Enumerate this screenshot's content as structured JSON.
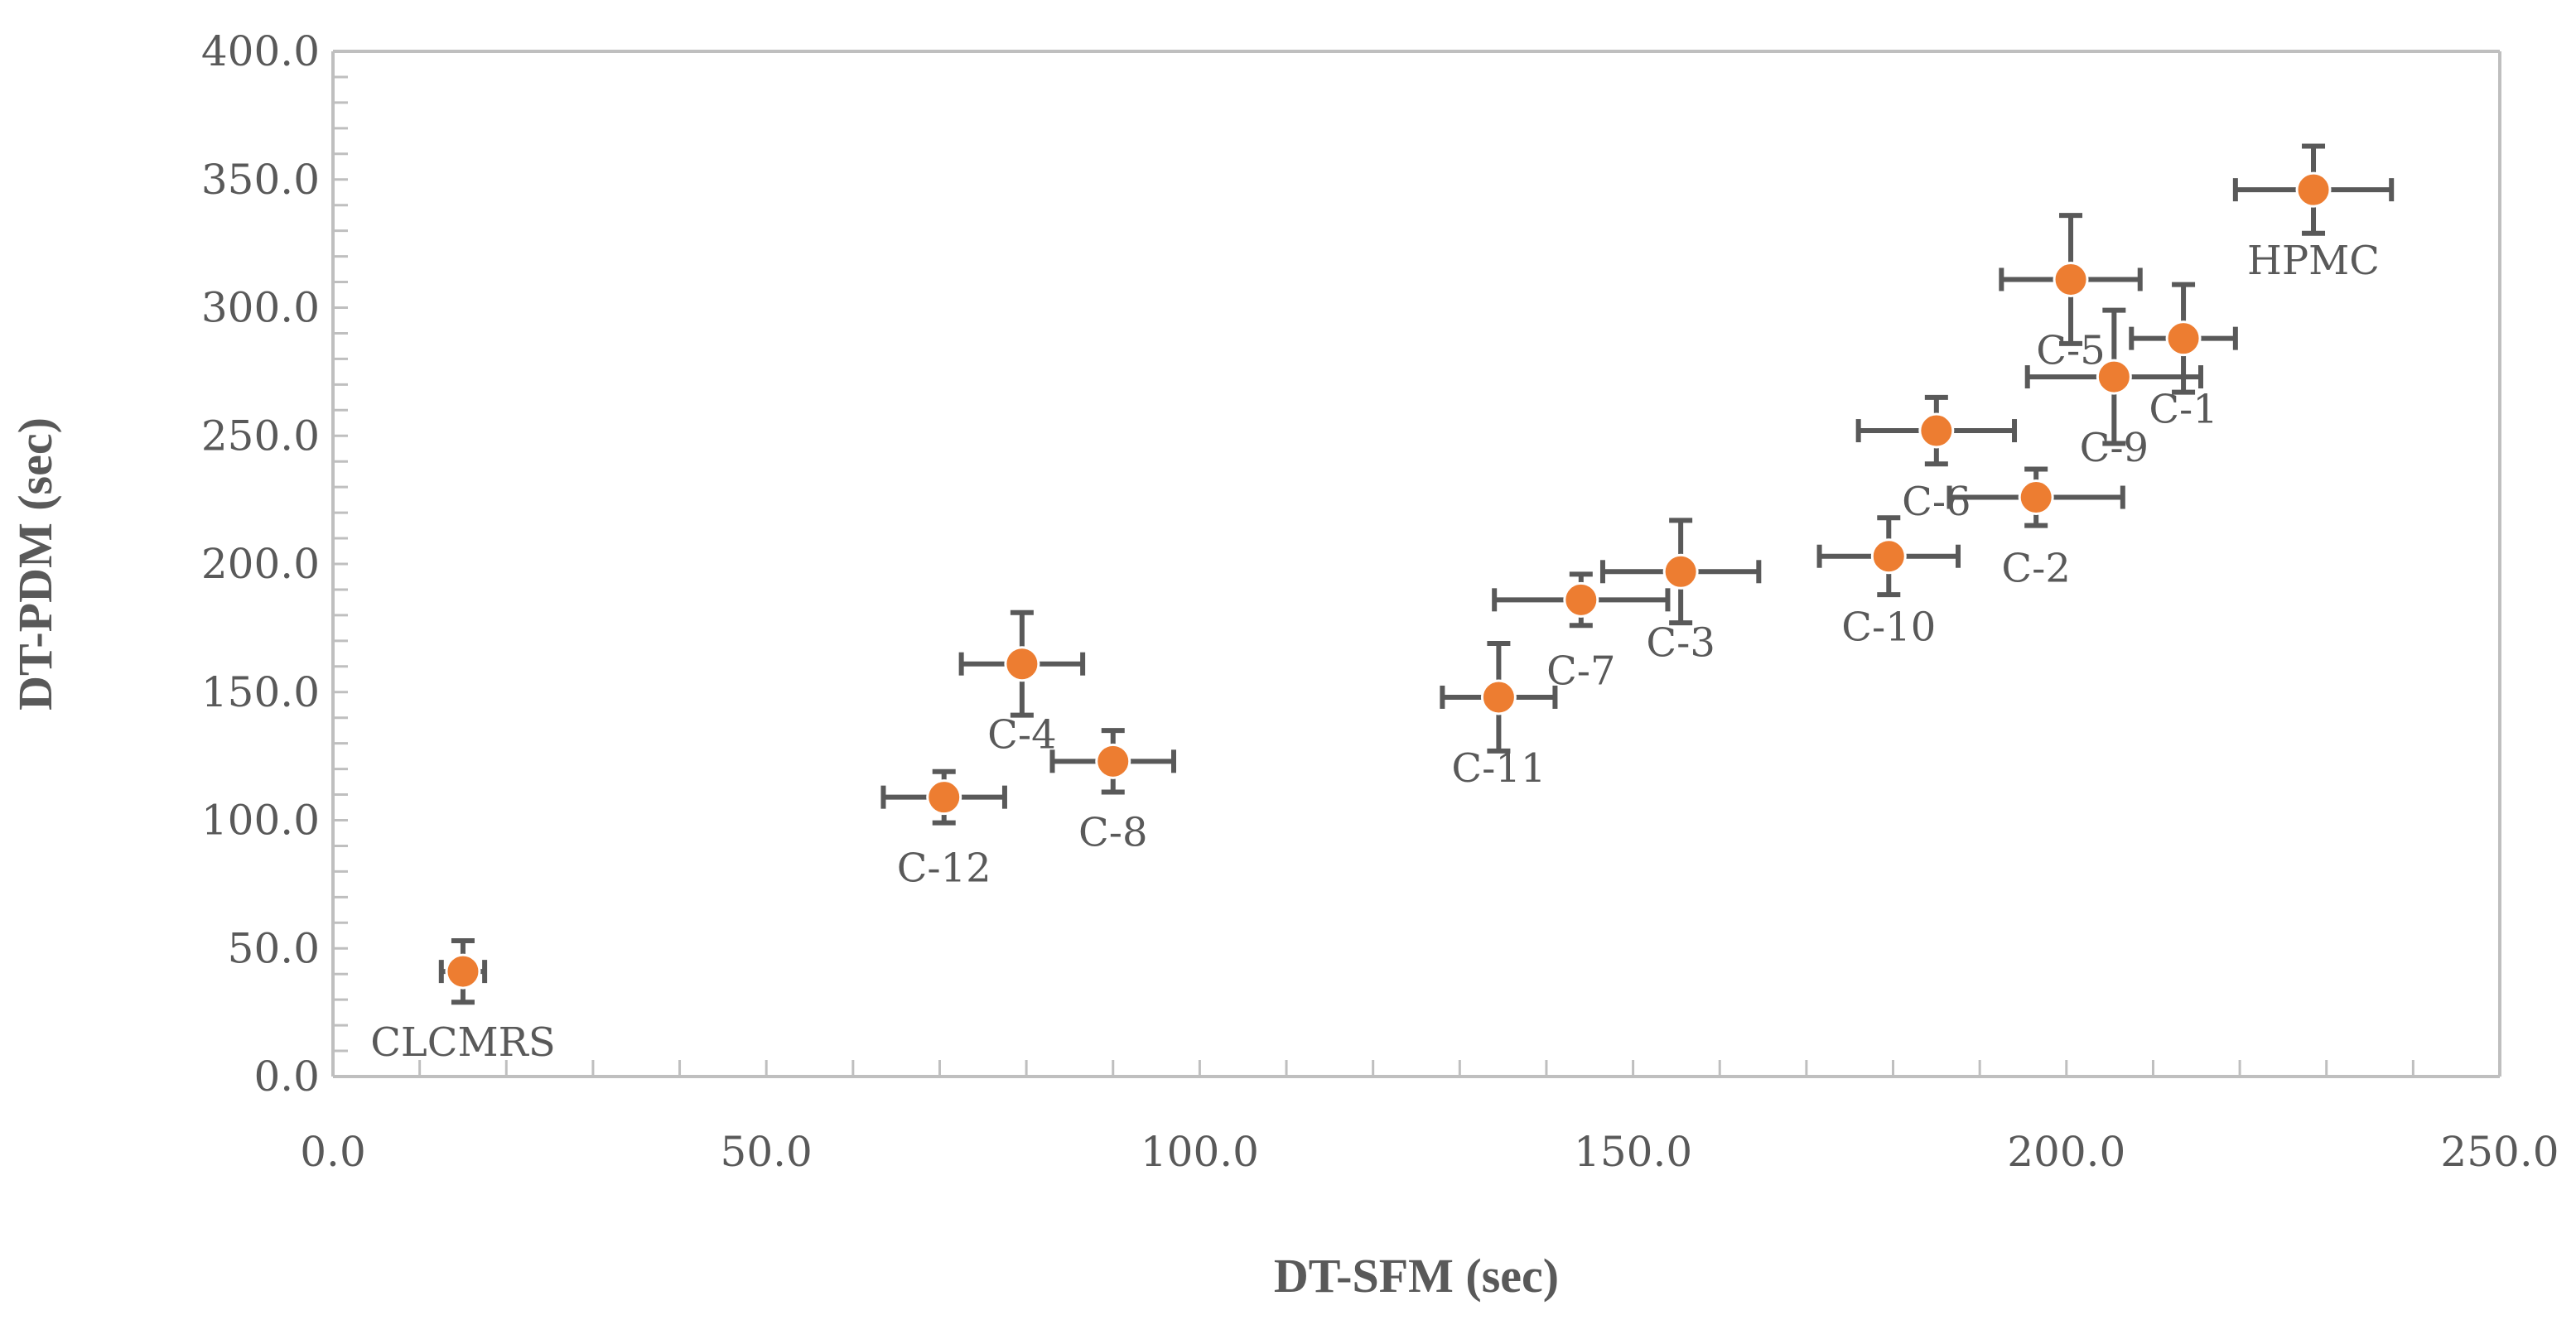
{
  "chart_data": {
    "type": "scatter",
    "title": "",
    "xlabel": "DT-SFM (sec)",
    "ylabel": "DT-PDM (sec)",
    "xlim": [
      0,
      250
    ],
    "ylim": [
      0,
      400
    ],
    "x_ticks": [
      "0.0",
      "50.0",
      "100.0",
      "150.0",
      "200.0",
      "250.0"
    ],
    "y_ticks": [
      "0.0",
      "50.0",
      "100.0",
      "150.0",
      "200.0",
      "250.0",
      "300.0",
      "350.0",
      "400.0"
    ],
    "grid": false,
    "marker_color": "#ED7D31",
    "errorbar_color": "#595959",
    "axis_color": "#BFBFBF",
    "points": [
      {
        "label": "CLCMRS",
        "x": 15,
        "y": 41,
        "xerr": 2.5,
        "yerr": 12
      },
      {
        "label": "C-12",
        "x": 70.5,
        "y": 109,
        "xerr": 7,
        "yerr": 10
      },
      {
        "label": "C-4",
        "x": 79.5,
        "y": 161,
        "xerr": 7,
        "yerr": 20
      },
      {
        "label": "C-8",
        "x": 90,
        "y": 123,
        "xerr": 7,
        "yerr": 12
      },
      {
        "label": "C-11",
        "x": 134.5,
        "y": 148,
        "xerr": 6.5,
        "yerr": 21
      },
      {
        "label": "C-7",
        "x": 144,
        "y": 186,
        "xerr": 10,
        "yerr": 10
      },
      {
        "label": "C-3",
        "x": 155.5,
        "y": 197,
        "xerr": 9,
        "yerr": 20
      },
      {
        "label": "C-10",
        "x": 179.5,
        "y": 203,
        "xerr": 8,
        "yerr": 15
      },
      {
        "label": "C-6",
        "x": 185,
        "y": 252,
        "xerr": 9,
        "yerr": 13
      },
      {
        "label": "C-2",
        "x": 196.5,
        "y": 226,
        "xerr": 10,
        "yerr": 11
      },
      {
        "label": "C-5",
        "x": 200.5,
        "y": 311,
        "xerr": 8,
        "yerr": 25
      },
      {
        "label": "C-9",
        "x": 205.5,
        "y": 273,
        "xerr": 10,
        "yerr": 26
      },
      {
        "label": "C-1",
        "x": 213.5,
        "y": 288,
        "xerr": 6,
        "yerr": 21
      },
      {
        "label": "HPMC",
        "x": 228.5,
        "y": 346,
        "xerr": 9,
        "yerr": 17
      }
    ]
  }
}
